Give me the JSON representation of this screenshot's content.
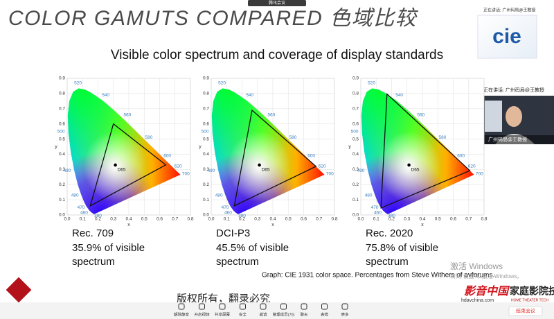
{
  "header": {
    "meeting_tab": "腾讯会议",
    "speaking": "正在讲话: 广州码局@王教授"
  },
  "slide": {
    "title": "COLOR GAMUTS COMPARED 色域比较",
    "subtitle": "Visible color spectrum and coverage of display standards",
    "x_label": "x",
    "y_label": "y",
    "xticks": [
      {
        "value": 0,
        "label": "0.0"
      },
      {
        "value": 0.1,
        "label": "0.1"
      },
      {
        "value": 0.2,
        "label": "0.2"
      },
      {
        "value": 0.3,
        "label": "0.3"
      },
      {
        "value": 0.4,
        "label": "0.4"
      },
      {
        "value": 0.5,
        "label": "0.5"
      },
      {
        "value": 0.6,
        "label": "0.6"
      },
      {
        "value": 0.7,
        "label": "0.7"
      },
      {
        "value": 0.8,
        "label": "0.8"
      }
    ],
    "yticks": [
      {
        "value": 0,
        "label": "0.0"
      },
      {
        "value": 0.1,
        "label": "0.1"
      },
      {
        "value": 0.2,
        "label": "0.2"
      },
      {
        "value": 0.3,
        "label": "0.3"
      },
      {
        "value": 0.4,
        "label": "0.4"
      },
      {
        "value": 0.5,
        "label": "0.5"
      },
      {
        "value": 0.6,
        "label": "0.6"
      },
      {
        "value": 0.7,
        "label": "0.7"
      },
      {
        "value": 0.8,
        "label": "0.8"
      },
      {
        "value": 0.9,
        "label": "0.9"
      }
    ],
    "wavelengths": [
      "520",
      "540",
      "560",
      "580",
      "600",
      "620",
      "700",
      "500",
      "490",
      "480",
      "470",
      "460",
      "380"
    ],
    "white_point": {
      "label": "D65",
      "x": 0.3127,
      "y": 0.329
    },
    "diagrams": [
      {
        "name": "Rec. 709",
        "coverage": [
          "35.9% of visible",
          "spectrum"
        ],
        "triangle": {
          "x": [
            0.64,
            0.3,
            0.15
          ],
          "y": [
            0.33,
            0.6,
            0.06
          ]
        }
      },
      {
        "name": "DCI-P3",
        "coverage": [
          "45.5% of visible",
          "spectrum"
        ],
        "triangle": {
          "x": [
            0.68,
            0.265,
            0.15
          ],
          "y": [
            0.32,
            0.69,
            0.06
          ]
        }
      },
      {
        "name": "Rec. 2020",
        "coverage": [
          "75.8% of visible",
          "spectrum"
        ],
        "triangle": {
          "x": [
            0.708,
            0.17,
            0.131
          ],
          "y": [
            0.292,
            0.797,
            0.046
          ]
        }
      }
    ],
    "caption": "Graph: CIE 1931 color space. Percentages from Steve Withers of avforums.",
    "copyright": "版权所有，翻录必究"
  },
  "logo": "cie",
  "video": {
    "name": "广州码局@王教授"
  },
  "watermarks": {
    "windows": "激活 Windows",
    "windows_hint": "转到\"设置\"以激活 Windows。",
    "site": "影音中国",
    "site_url": "hdavchina.com",
    "brand": "家庭影院技术",
    "brand_en": "HOME THEATER TECH"
  },
  "toolbar": {
    "buttons": [
      "解除静音",
      "开启视频",
      "共享屏幕",
      "安全",
      "邀请",
      "管理成员(70)",
      "聊天",
      "表情",
      "更多"
    ],
    "end": "结束会议"
  }
}
